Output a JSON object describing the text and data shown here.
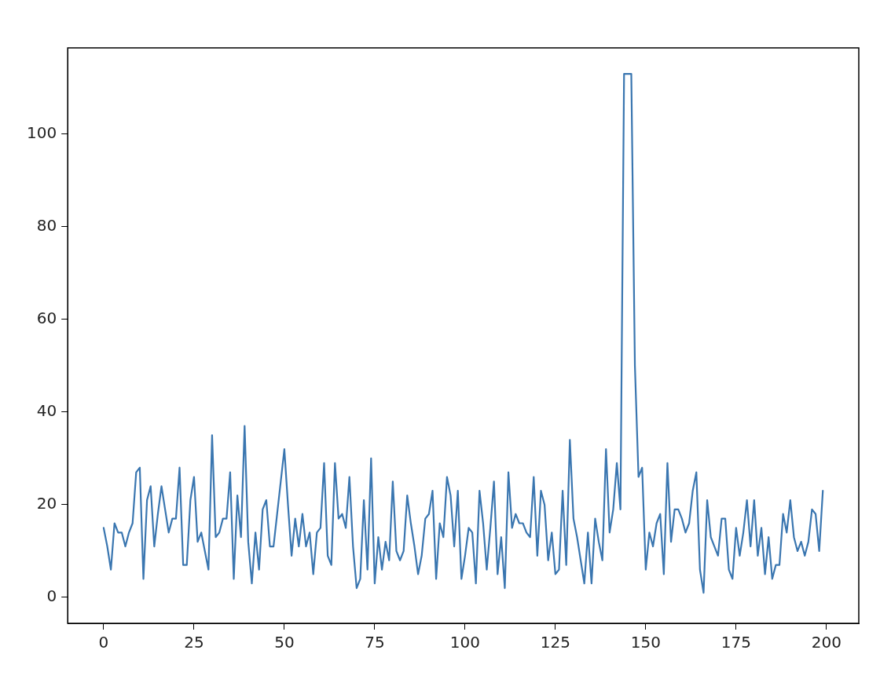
{
  "chart_data": {
    "type": "line",
    "x": [
      0,
      1,
      2,
      3,
      4,
      5,
      6,
      7,
      8,
      9,
      10,
      11,
      12,
      13,
      14,
      15,
      16,
      17,
      18,
      19,
      20,
      21,
      22,
      23,
      24,
      25,
      26,
      27,
      28,
      29,
      30,
      31,
      32,
      33,
      34,
      35,
      36,
      37,
      38,
      39,
      40,
      41,
      42,
      43,
      44,
      45,
      46,
      47,
      48,
      49,
      50,
      51,
      52,
      53,
      54,
      55,
      56,
      57,
      58,
      59,
      60,
      61,
      62,
      63,
      64,
      65,
      66,
      67,
      68,
      69,
      70,
      71,
      72,
      73,
      74,
      75,
      76,
      77,
      78,
      79,
      80,
      81,
      82,
      83,
      84,
      85,
      86,
      87,
      88,
      89,
      90,
      91,
      92,
      93,
      94,
      95,
      96,
      97,
      98,
      99,
      100,
      101,
      102,
      103,
      104,
      105,
      106,
      107,
      108,
      109,
      110,
      111,
      112,
      113,
      114,
      115,
      116,
      117,
      118,
      119,
      120,
      121,
      122,
      123,
      124,
      125,
      126,
      127,
      128,
      129,
      130,
      131,
      132,
      133,
      134,
      135,
      136,
      137,
      138,
      139,
      140,
      141,
      142,
      143,
      144,
      145,
      146,
      147,
      148,
      149,
      150,
      151,
      152,
      153,
      154,
      155,
      156,
      157,
      158,
      159,
      160,
      161,
      162,
      163,
      164,
      165,
      166,
      167,
      168,
      169,
      170,
      171,
      172,
      173,
      174,
      175,
      176,
      177,
      178,
      179,
      180,
      181,
      182,
      183,
      184,
      185,
      186,
      187,
      188,
      189,
      190,
      191,
      192,
      193,
      194,
      195,
      196,
      197,
      198,
      199
    ],
    "series": [
      {
        "color": "#3a76b0",
        "values": [
          15,
          11,
          6,
          16,
          14,
          14,
          11,
          14,
          16,
          27,
          28,
          4,
          21,
          24,
          11,
          18,
          24,
          19,
          14,
          17,
          17,
          28,
          7,
          7,
          21,
          26,
          12,
          14,
          10,
          6,
          35,
          13,
          14,
          17,
          17,
          27,
          4,
          22,
          13,
          37,
          12,
          3,
          14,
          6,
          19,
          21,
          11,
          11,
          18,
          25,
          32,
          20,
          9,
          17,
          11,
          18,
          11,
          14,
          5,
          14,
          15,
          29,
          9,
          7,
          29,
          17,
          18,
          15,
          26,
          11,
          2,
          4,
          21,
          6,
          30,
          3,
          13,
          6,
          12,
          8,
          25,
          10,
          8,
          10,
          22,
          16,
          11,
          5,
          9,
          17,
          18,
          23,
          4,
          16,
          13,
          26,
          22,
          11,
          23,
          4,
          9,
          15,
          14,
          3,
          23,
          16,
          6,
          15,
          25,
          5,
          13,
          2,
          27,
          15,
          18,
          16,
          16,
          14,
          13,
          26,
          9,
          23,
          20,
          8,
          14,
          5,
          6,
          23,
          7,
          34,
          17,
          13,
          8,
          3,
          14,
          3,
          17,
          12,
          8,
          32,
          14,
          19,
          29,
          19,
          113,
          113,
          113,
          50,
          26,
          28,
          6,
          14,
          11,
          16,
          18,
          5,
          29,
          12,
          19,
          19,
          17,
          14,
          16,
          23,
          27,
          6,
          1,
          21,
          13,
          11,
          9,
          17,
          17,
          6,
          4,
          15,
          9,
          14,
          21,
          11,
          21,
          9,
          15,
          5,
          13,
          4,
          7,
          7,
          18,
          14,
          21,
          13,
          10,
          12,
          9,
          12,
          19,
          18,
          10,
          23
        ]
      }
    ],
    "xlim": [
      -9.95,
      208.95
    ],
    "xticks": [
      0,
      25,
      50,
      75,
      100,
      125,
      150,
      175,
      200
    ],
    "ylim": [
      -5.6,
      118.6
    ],
    "yticks": [
      0,
      20,
      40,
      60,
      80,
      100
    ],
    "grid": false,
    "legend": false,
    "marker": "none",
    "line_style": "solid"
  }
}
